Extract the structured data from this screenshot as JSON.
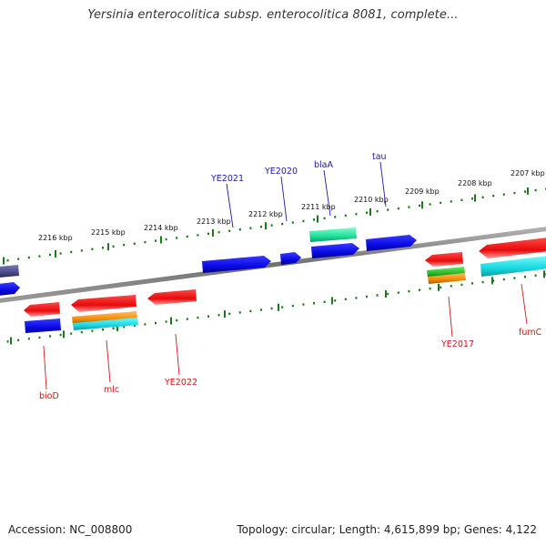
{
  "header": {
    "title": "Yersinia enterocolitica subsp. enterocolitica 8081, complete..."
  },
  "footer": {
    "accession": "Accession: NC_008800",
    "topology": "Topology: circular; Length: 4,615,899 bp; Genes: 4,122"
  },
  "colors": {
    "backbone": "#808080",
    "tick": "#1a7a1a",
    "label_top": "#1a1aa0",
    "label_bottom": "#cc1a1a",
    "gene_blue": "#0a0ae6",
    "gene_red": "#e60a0a",
    "gene_teal": "#1fdf9a",
    "gene_cyan": "#18d8e0",
    "gene_orange": "#f08a00",
    "gene_green": "#2ab82a",
    "gene_slate": "#4a4a8a"
  },
  "kbp_ticks": [
    {
      "label": "2207 kbp"
    },
    {
      "label": "2208 kbp"
    },
    {
      "label": "2209 kbp"
    },
    {
      "label": "2210 kbp"
    },
    {
      "label": "2211 kbp"
    },
    {
      "label": "2212 kbp"
    },
    {
      "label": "2213 kbp"
    },
    {
      "label": "2214 kbp"
    },
    {
      "label": "2215 kbp"
    },
    {
      "label": "2216 kbp"
    }
  ],
  "genes_top_labels": [
    {
      "name": "YE2021"
    },
    {
      "name": "YE2020"
    },
    {
      "name": "blaA"
    },
    {
      "name": "tau"
    }
  ],
  "genes_bottom_labels": [
    {
      "name": "bioD"
    },
    {
      "name": "mlc"
    },
    {
      "name": "YE2022"
    },
    {
      "name": "YE2017"
    },
    {
      "name": "fumC"
    }
  ]
}
